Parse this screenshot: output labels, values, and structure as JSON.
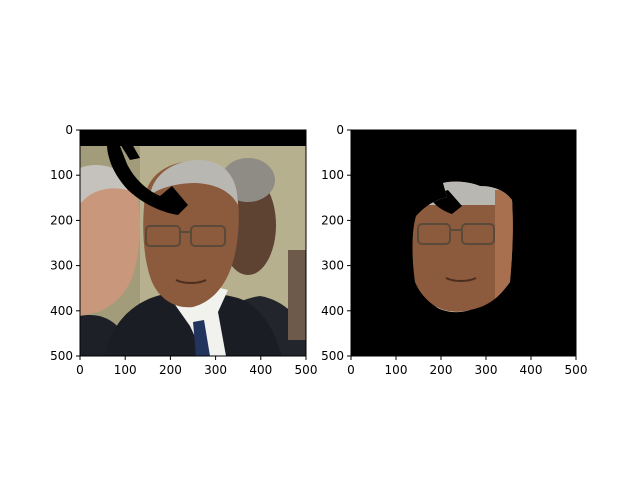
{
  "chart_data": [
    {
      "type": "image",
      "title": "",
      "xlabel": "",
      "ylabel": "",
      "xlim": [
        0,
        500
      ],
      "ylim": [
        500,
        0
      ],
      "xticks": [
        0,
        100,
        200,
        300,
        400,
        500
      ],
      "yticks": [
        0,
        100,
        200,
        300,
        400,
        500
      ],
      "xtick_labels": [
        "0",
        "100",
        "200",
        "300",
        "400",
        "500"
      ],
      "ytick_labels": [
        "0",
        "100",
        "200",
        "300",
        "400",
        "500"
      ],
      "grid": false,
      "image_content": "portrait photo with black occlusion mask (top band and curved stroke)"
    },
    {
      "type": "image",
      "title": "",
      "xlabel": "",
      "ylabel": "",
      "xlim": [
        0,
        500
      ],
      "ylim": [
        500,
        0
      ],
      "xticks": [
        0,
        100,
        200,
        300,
        400,
        500
      ],
      "yticks": [
        0,
        100,
        200,
        300,
        400,
        500
      ],
      "xtick_labels": [
        "0",
        "100",
        "200",
        "300",
        "400",
        "500"
      ],
      "ytick_labels": [
        "0",
        "100",
        "200",
        "300",
        "400",
        "500"
      ],
      "grid": false,
      "image_content": "face-only segmentation on black background"
    }
  ],
  "colors": {
    "mask": "#000000",
    "background_wall": "#b7b08e",
    "skin": "#8c5a3c",
    "skin_light": "#a8704e",
    "hair_gray": "#b9b7b2",
    "suit": "#1b1d24",
    "shirt": "#f1f1ee",
    "tie": "#22345e"
  }
}
